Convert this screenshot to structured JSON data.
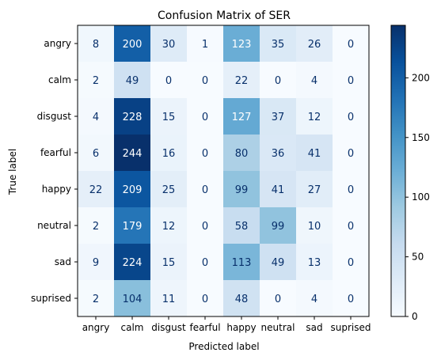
{
  "chart_data": {
    "type": "heatmap",
    "title": "Confusion Matrix of SER",
    "xlabel": "Predicted label",
    "ylabel": "True label",
    "x_categories": [
      "angry",
      "calm",
      "disgust",
      "fearful",
      "happy",
      "neutral",
      "sad",
      "suprised"
    ],
    "y_categories": [
      "angry",
      "calm",
      "disgust",
      "fearful",
      "happy",
      "neutral",
      "sad",
      "suprised"
    ],
    "values": [
      [
        8,
        200,
        30,
        1,
        123,
        35,
        26,
        0
      ],
      [
        2,
        49,
        0,
        0,
        22,
        0,
        4,
        0
      ],
      [
        4,
        228,
        15,
        0,
        127,
        37,
        12,
        0
      ],
      [
        6,
        244,
        16,
        0,
        80,
        36,
        41,
        0
      ],
      [
        22,
        209,
        25,
        0,
        99,
        41,
        27,
        0
      ],
      [
        2,
        179,
        12,
        0,
        58,
        99,
        10,
        0
      ],
      [
        9,
        224,
        15,
        0,
        113,
        49,
        13,
        0
      ],
      [
        2,
        104,
        11,
        0,
        48,
        0,
        4,
        0
      ]
    ],
    "colormap": "Blues",
    "colorbar": {
      "ticks": [
        0,
        50,
        100,
        150,
        200
      ],
      "range": [
        0,
        244
      ]
    },
    "cell_text_colors": {
      "dark_bg": "#ffffff",
      "light_bg": "#08306b"
    }
  }
}
